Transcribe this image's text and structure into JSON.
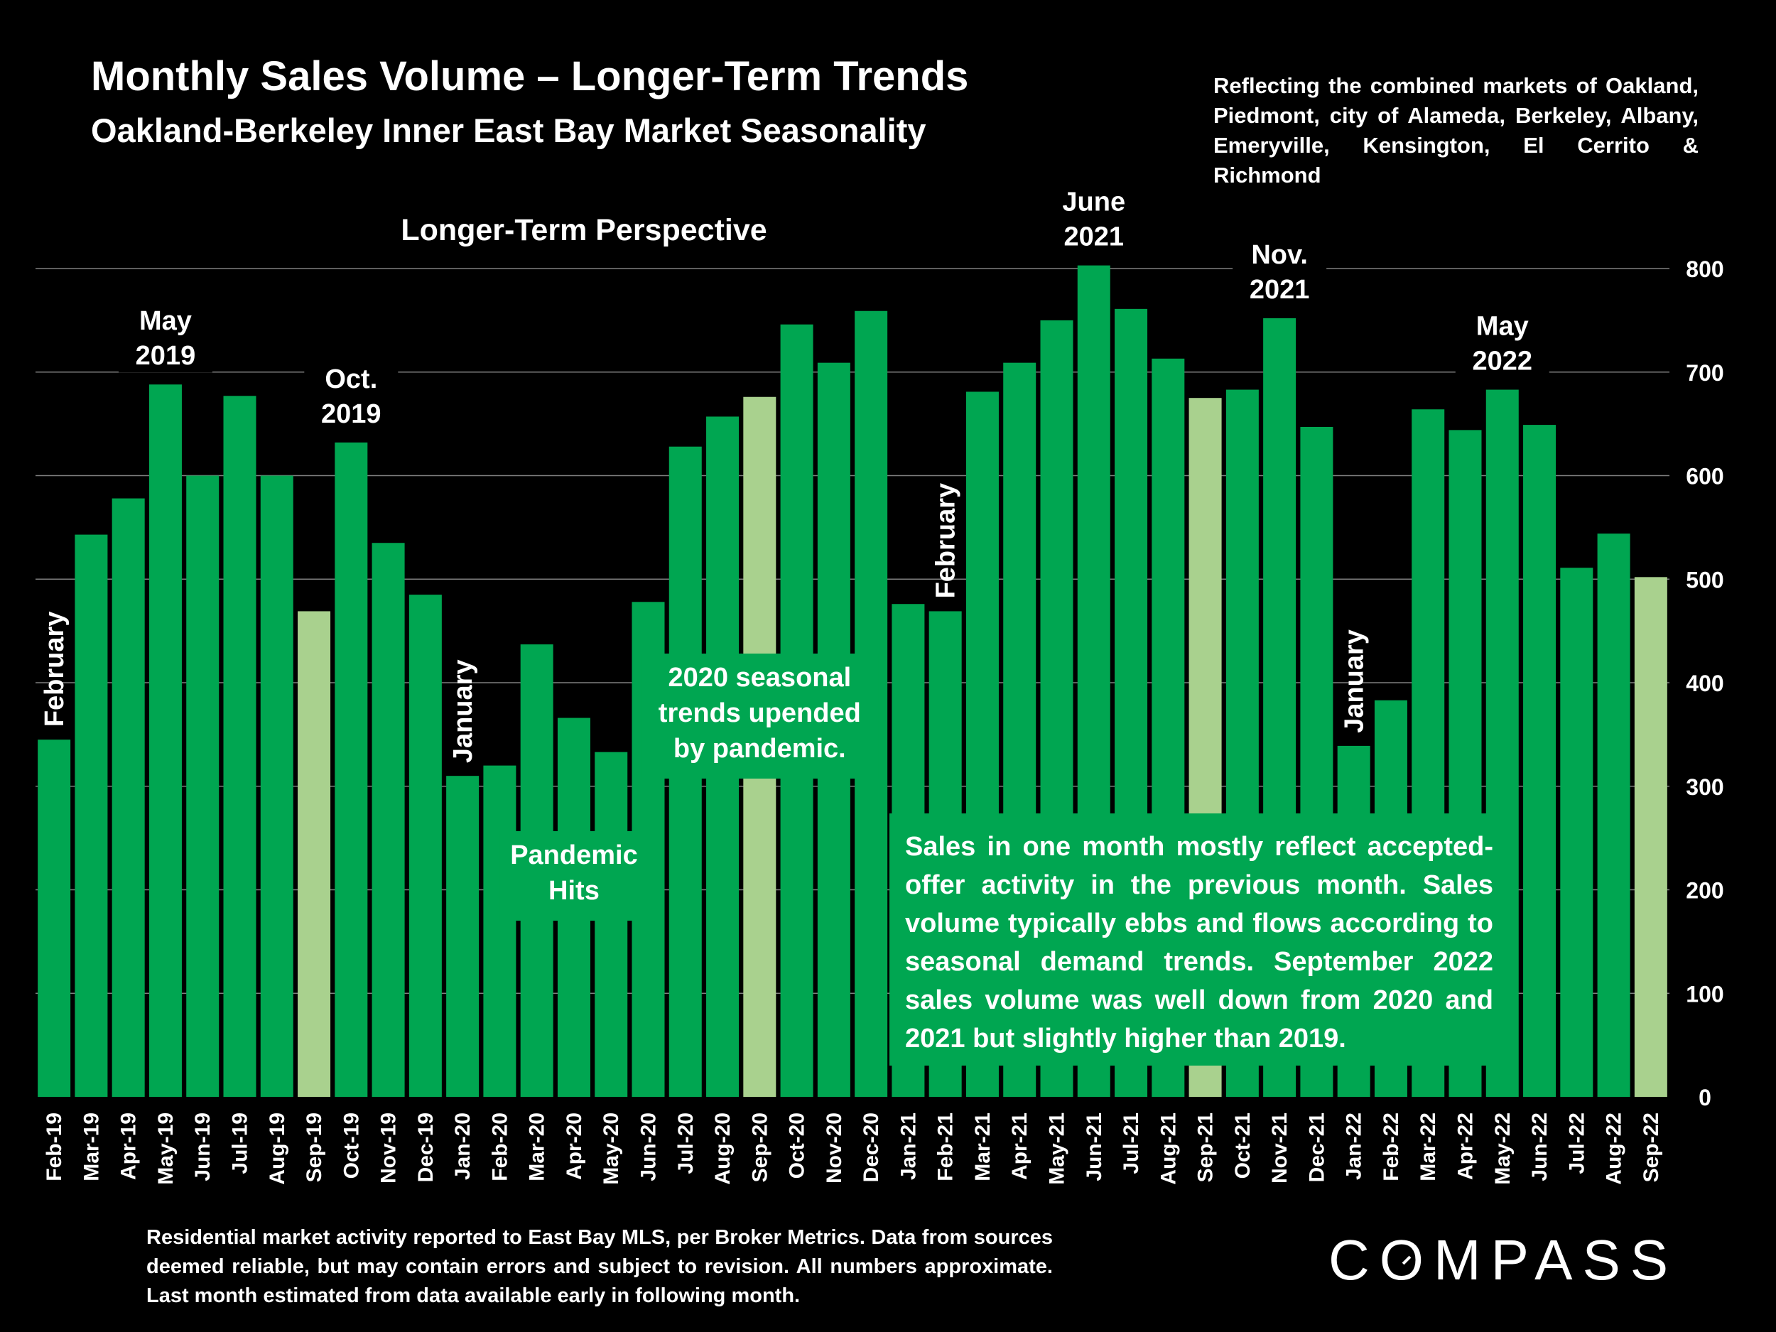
{
  "header": {
    "title": "Monthly Sales Volume – Longer-Term Trends",
    "subtitle": "Oakland-Berkeley Inner East Bay Market Seasonality",
    "coverage": "Reflecting the combined markets of Oakland, Piedmont, city of Alameda, Berkeley, Albany, Emeryville, Kensington, El Cerrito & Richmond"
  },
  "footer": {
    "note": "Residential market activity reported to East Bay MLS, per Broker Metrics. Data from sources deemed reliable, but may contain errors and subject to revision. All numbers approximate. Last month estimated from data available early in following month.",
    "logo": "COMPASS"
  },
  "chart_data": {
    "type": "bar",
    "title": "Longer-Term Perspective",
    "xlabel": "",
    "ylabel": "",
    "ylim": [
      0,
      800
    ],
    "y_ticks": [
      0,
      100,
      200,
      300,
      400,
      500,
      600,
      700,
      800
    ],
    "grid": true,
    "y_axis_side": "right",
    "categories": [
      "Feb-19",
      "Mar-19",
      "Apr-19",
      "May-19",
      "Jun-19",
      "Jul-19",
      "Aug-19",
      "Sep-19",
      "Oct-19",
      "Nov-19",
      "Dec-19",
      "Jan-20",
      "Feb-20",
      "Mar-20",
      "Apr-20",
      "May-20",
      "Jun-20",
      "Jul-20",
      "Aug-20",
      "Sep-20",
      "Oct-20",
      "Nov-20",
      "Dec-20",
      "Jan-21",
      "Feb-21",
      "Mar-21",
      "Apr-21",
      "May-21",
      "Jun-21",
      "Jul-21",
      "Aug-21",
      "Sep-21",
      "Oct-21",
      "Nov-21",
      "Dec-21",
      "Jan-22",
      "Feb-22",
      "Mar-22",
      "Apr-22",
      "May-22",
      "Jun-22",
      "Jul-22",
      "Aug-22",
      "Sep-22"
    ],
    "values": [
      345,
      543,
      578,
      688,
      600,
      677,
      600,
      469,
      632,
      535,
      485,
      310,
      320,
      437,
      366,
      333,
      478,
      628,
      657,
      676,
      746,
      709,
      759,
      476,
      469,
      681,
      709,
      750,
      803,
      761,
      713,
      675,
      683,
      752,
      647,
      339,
      383,
      664,
      644,
      683,
      649,
      511,
      544,
      502
    ],
    "highlight_categories": [
      "Sep-19",
      "Sep-20",
      "Sep-21",
      "Sep-22"
    ],
    "colors": {
      "bar": "#00A651",
      "highlight": "#A9D18E",
      "grid": "#7f7f7f",
      "background": "#000000"
    },
    "annotations": [
      {
        "text": "February",
        "at": "Feb-19",
        "rotated": true
      },
      {
        "text": "May 2019",
        "at": "May-19"
      },
      {
        "text": "Oct. 2019",
        "at": "Oct-19"
      },
      {
        "text": "January",
        "at": "Jan-20",
        "rotated": true
      },
      {
        "text": "Pandemic Hits",
        "at": "Apr-20",
        "boxed": true
      },
      {
        "text": "2020 seasonal trends upended by pandemic.",
        "at": "Sep-20",
        "boxed": true
      },
      {
        "text": "February",
        "at": "Feb-21",
        "rotated": true
      },
      {
        "text": "June 2021",
        "at": "Jun-21"
      },
      {
        "text": "Nov. 2021",
        "at": "Nov-21"
      },
      {
        "text": "January",
        "at": "Jan-22",
        "rotated": true
      },
      {
        "text": "May 2022",
        "at": "May-22"
      }
    ],
    "callout": "Sales in one month mostly reflect accepted-offer activity in the previous month. Sales volume typically ebbs and flows according to seasonal demand trends. September 2022 sales volume was well down from 2020 and 2021 but slightly higher than 2019."
  }
}
